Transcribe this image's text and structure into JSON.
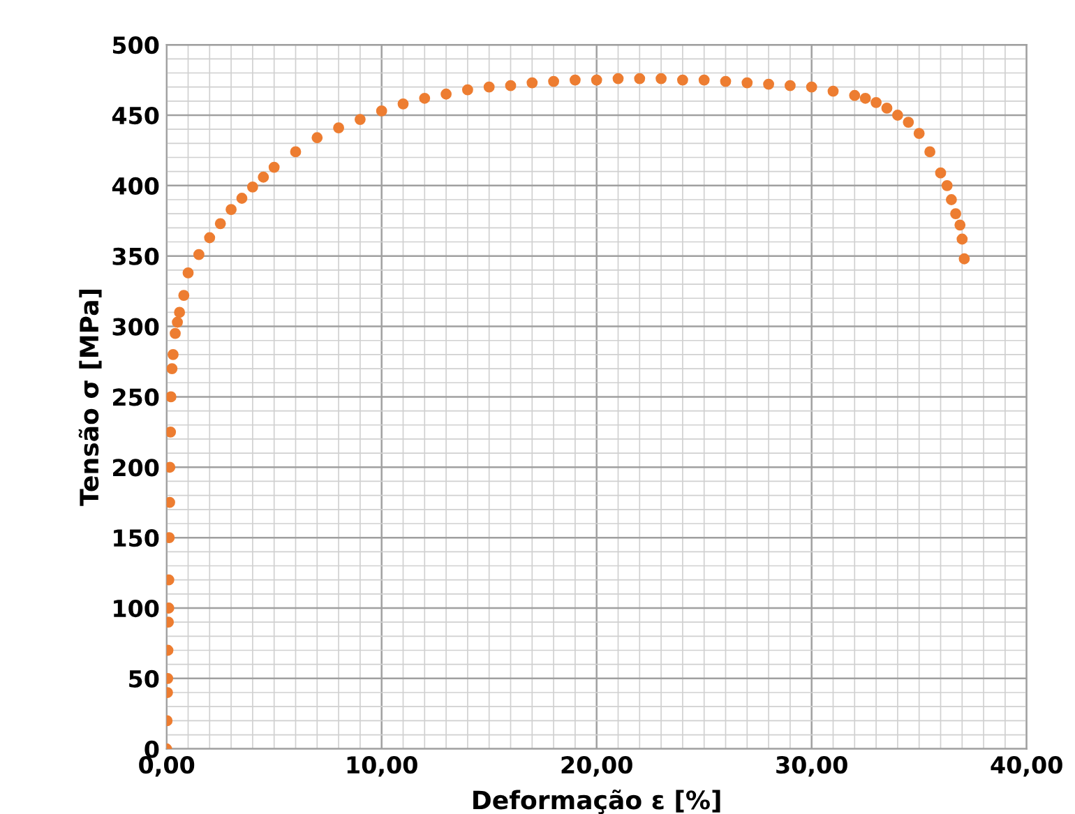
{
  "chart_data": {
    "type": "scatter",
    "xlabel": "Deformação ε [%]",
    "ylabel": "Tensão σ [MPa]",
    "xlim": [
      0,
      40
    ],
    "ylim": [
      0,
      500
    ],
    "xticks": [
      {
        "value": 0,
        "label": "0,00"
      },
      {
        "value": 10,
        "label": "10,00"
      },
      {
        "value": 20,
        "label": "20,00"
      },
      {
        "value": 30,
        "label": "30,00"
      },
      {
        "value": 40,
        "label": "40,00"
      }
    ],
    "yticks": [
      0,
      50,
      100,
      150,
      200,
      250,
      300,
      350,
      400,
      450,
      500
    ],
    "grid": true,
    "marker": "circle",
    "legend": false,
    "series": [
      {
        "color": "#ed7d31",
        "x": [
          0,
          0.02,
          0.04,
          0.05,
          0.06,
          0.08,
          0.1,
          0.1,
          0.12,
          0.14,
          0.15,
          0.18,
          0.2,
          0.25,
          0.3,
          0.4,
          0.5,
          0.6,
          0.8,
          1,
          1.5,
          2,
          2.5,
          3,
          3.5,
          4,
          4.5,
          5,
          6,
          7,
          8,
          9,
          10,
          11,
          12,
          13,
          14,
          15,
          16,
          17,
          18,
          19,
          20,
          21,
          22,
          23,
          24,
          25,
          26,
          27,
          28,
          29,
          30,
          31,
          32,
          32.5,
          33,
          33.5,
          34,
          34.5,
          35,
          35.5,
          36,
          36.3,
          36.5,
          36.7,
          36.9,
          37,
          37.1
        ],
        "values": [
          0,
          20,
          40,
          50,
          70,
          90,
          100,
          120,
          150,
          175,
          200,
          225,
          250,
          270,
          280,
          295,
          303,
          310,
          322,
          338,
          351,
          363,
          373,
          383,
          391,
          399,
          406,
          413,
          424,
          434,
          441,
          447,
          453,
          458,
          462,
          465,
          468,
          470,
          471,
          473,
          474,
          475,
          475,
          476,
          476,
          476,
          475,
          475,
          474,
          473,
          472,
          471,
          470,
          467,
          464,
          462,
          459,
          455,
          450,
          445,
          437,
          424,
          409,
          400,
          390,
          380,
          372,
          362,
          348
        ]
      }
    ]
  }
}
